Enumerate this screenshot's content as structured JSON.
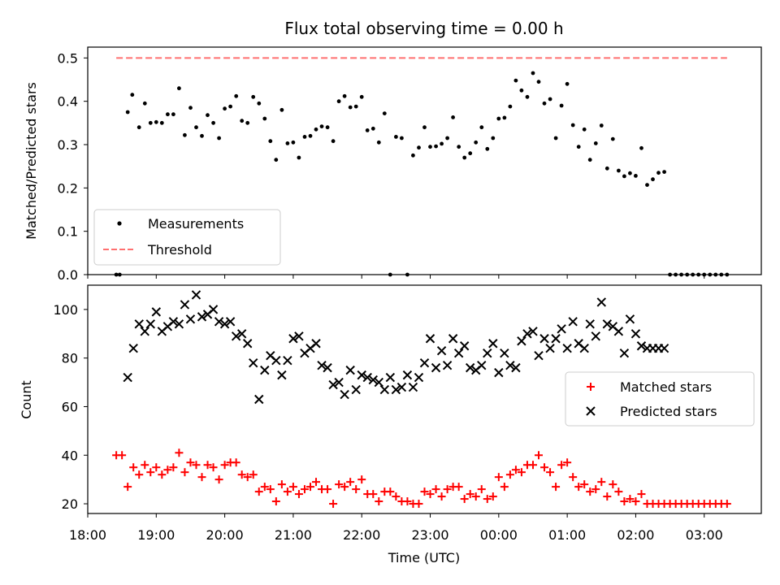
{
  "chart_data": [
    {
      "type": "scatter",
      "title": "Flux total observing time = 0.00 h",
      "xlabel": "",
      "ylabel": "Matched/Predicted stars",
      "xlim": [
        "18:00",
        "03:50"
      ],
      "ylim": [
        0,
        0.525
      ],
      "yticks": [
        "0.0",
        "0.1",
        "0.2",
        "0.3",
        "0.4",
        "0.5"
      ],
      "legend": {
        "placement": "lower-left",
        "entries": [
          "Measurements",
          "Threshold"
        ]
      },
      "series": [
        {
          "name": "Measurements",
          "color": "#000000",
          "marker": "dot",
          "x": [
            "18:25",
            "18:28",
            "18:35",
            "18:39",
            "18:45",
            "18:50",
            "18:55",
            "19:00",
            "19:05",
            "19:10",
            "19:15",
            "19:20",
            "19:25",
            "19:30",
            "19:35",
            "19:40",
            "19:45",
            "19:50",
            "19:55",
            "20:00",
            "20:05",
            "20:10",
            "20:15",
            "20:20",
            "20:25",
            "20:30",
            "20:35",
            "20:40",
            "20:45",
            "20:50",
            "20:55",
            "21:00",
            "21:05",
            "21:10",
            "21:15",
            "21:20",
            "21:25",
            "21:30",
            "21:35",
            "21:40",
            "21:45",
            "21:50",
            "21:55",
            "22:00",
            "22:05",
            "22:10",
            "22:15",
            "22:20",
            "22:25",
            "22:30",
            "22:35",
            "22:40",
            "22:45",
            "22:50",
            "22:55",
            "23:00",
            "23:05",
            "23:10",
            "23:15",
            "23:20",
            "23:25",
            "23:30",
            "23:35",
            "23:40",
            "23:45",
            "23:50",
            "23:55",
            "00:00",
            "00:05",
            "00:10",
            "00:15",
            "00:20",
            "00:25",
            "00:30",
            "00:35",
            "00:40",
            "00:45",
            "00:50",
            "00:55",
            "01:00",
            "01:05",
            "01:10",
            "01:15",
            "01:20",
            "01:25",
            "01:30",
            "01:35",
            "01:40",
            "01:45",
            "01:50",
            "01:55",
            "02:00",
            "02:05",
            "02:10",
            "02:15",
            "02:20",
            "02:25",
            "02:30",
            "02:35",
            "02:40",
            "02:45",
            "02:50",
            "02:55",
            "03:00",
            "03:05",
            "03:10",
            "03:15",
            "03:20"
          ],
          "y": [
            0.0,
            0.0,
            0.375,
            0.415,
            0.34,
            0.395,
            0.35,
            0.352,
            0.35,
            0.37,
            0.37,
            0.43,
            0.322,
            0.385,
            0.34,
            0.32,
            0.368,
            0.35,
            0.315,
            0.383,
            0.388,
            0.412,
            0.355,
            0.35,
            0.41,
            0.395,
            0.36,
            0.308,
            0.265,
            0.38,
            0.303,
            0.305,
            0.27,
            0.318,
            0.32,
            0.335,
            0.342,
            0.34,
            0.308,
            0.4,
            0.412,
            0.386,
            0.388,
            0.41,
            0.333,
            0.337,
            0.305,
            0.372,
            0.0,
            0.318,
            0.315,
            0.0,
            0.275,
            0.293,
            0.34,
            0.295,
            0.296,
            0.302,
            0.315,
            0.363,
            0.295,
            0.27,
            0.28,
            0.305,
            0.34,
            0.29,
            0.315,
            0.36,
            0.362,
            0.388,
            0.448,
            0.425,
            0.41,
            0.465,
            0.445,
            0.395,
            0.405,
            0.315,
            0.39,
            0.44,
            0.345,
            0.295,
            0.335,
            0.265,
            0.303,
            0.344,
            0.245,
            0.313,
            0.24,
            0.227,
            0.234,
            0.228,
            0.292,
            0.207,
            0.22,
            0.235,
            0.237,
            0.0,
            0.0,
            0.0,
            0.0,
            0.0,
            0.0,
            0.0,
            0.0,
            0.0,
            0.0,
            0.0
          ]
        },
        {
          "name": "Threshold",
          "color": "#ff7070",
          "style": "dashed",
          "x": [
            "18:25",
            "03:20"
          ],
          "y": [
            0.5,
            0.5
          ]
        }
      ]
    },
    {
      "type": "scatter",
      "title": "",
      "xlabel": "Time (UTC)",
      "ylabel": "Count",
      "xlim": [
        "18:00",
        "03:50"
      ],
      "ylim": [
        16,
        110
      ],
      "xticks": [
        "18:00",
        "19:00",
        "20:00",
        "21:00",
        "22:00",
        "23:00",
        "00:00",
        "01:00",
        "02:00",
        "03:00"
      ],
      "yticks": [
        "20",
        "40",
        "60",
        "80",
        "100"
      ],
      "legend": {
        "placement": "right",
        "entries": [
          "Matched stars",
          "Predicted stars"
        ]
      },
      "series": [
        {
          "name": "Matched stars",
          "color": "#ff0000",
          "marker": "plus",
          "x": [
            "18:25",
            "18:30",
            "18:35",
            "18:40",
            "18:45",
            "18:50",
            "18:55",
            "19:00",
            "19:05",
            "19:10",
            "19:15",
            "19:20",
            "19:25",
            "19:30",
            "19:35",
            "19:40",
            "19:45",
            "19:50",
            "19:55",
            "20:00",
            "20:05",
            "20:10",
            "20:15",
            "20:20",
            "20:25",
            "20:30",
            "20:35",
            "20:40",
            "20:45",
            "20:50",
            "20:55",
            "21:00",
            "21:05",
            "21:10",
            "21:15",
            "21:20",
            "21:25",
            "21:30",
            "21:35",
            "21:40",
            "21:45",
            "21:50",
            "21:55",
            "22:00",
            "22:05",
            "22:10",
            "22:15",
            "22:20",
            "22:25",
            "22:30",
            "22:35",
            "22:40",
            "22:45",
            "22:50",
            "22:55",
            "23:00",
            "23:05",
            "23:10",
            "23:15",
            "23:20",
            "23:25",
            "23:30",
            "23:35",
            "23:40",
            "23:45",
            "23:50",
            "23:55",
            "00:00",
            "00:05",
            "00:10",
            "00:15",
            "00:20",
            "00:25",
            "00:30",
            "00:35",
            "00:40",
            "00:45",
            "00:50",
            "00:55",
            "01:00",
            "01:05",
            "01:10",
            "01:15",
            "01:20",
            "01:25",
            "01:30",
            "01:35",
            "01:40",
            "01:45",
            "01:50",
            "01:55",
            "02:00",
            "02:05",
            "02:10",
            "02:15",
            "02:20",
            "02:25",
            "02:30",
            "02:35",
            "02:40",
            "02:45",
            "02:50",
            "02:55",
            "03:00",
            "03:05",
            "03:10",
            "03:15",
            "03:20"
          ],
          "y": [
            40,
            40,
            27,
            35,
            32,
            36,
            33,
            35,
            32,
            34,
            35,
            41,
            33,
            37,
            36,
            31,
            36,
            35,
            30,
            36,
            37,
            37,
            32,
            31,
            32,
            25,
            27,
            26,
            21,
            28,
            25,
            27,
            24,
            26,
            27,
            29,
            26,
            26,
            20,
            28,
            27,
            29,
            26,
            30,
            24,
            24,
            21,
            25,
            25,
            23,
            21,
            21,
            20,
            20,
            25,
            24,
            26,
            23,
            26,
            27,
            27,
            22,
            24,
            23,
            26,
            22,
            23,
            31,
            27,
            32,
            34,
            33,
            36,
            36,
            40,
            35,
            33,
            27,
            36,
            37,
            31,
            27,
            28,
            25,
            26,
            29,
            23,
            28,
            25,
            21,
            22,
            21,
            24,
            20,
            20,
            20,
            20,
            20,
            20,
            20,
            20,
            20,
            20,
            20,
            20,
            20,
            20,
            20
          ]
        },
        {
          "name": "Predicted stars",
          "color": "#000000",
          "marker": "x",
          "x": [
            "18:35",
            "18:40",
            "18:45",
            "18:50",
            "18:55",
            "19:00",
            "19:05",
            "19:10",
            "19:15",
            "19:20",
            "19:25",
            "19:30",
            "19:35",
            "19:40",
            "19:45",
            "19:50",
            "19:55",
            "20:00",
            "20:05",
            "20:10",
            "20:15",
            "20:20",
            "20:25",
            "20:30",
            "20:35",
            "20:40",
            "20:45",
            "20:50",
            "20:55",
            "21:00",
            "21:05",
            "21:10",
            "21:15",
            "21:20",
            "21:25",
            "21:30",
            "21:35",
            "21:40",
            "21:45",
            "21:50",
            "21:55",
            "22:00",
            "22:05",
            "22:10",
            "22:15",
            "22:20",
            "22:25",
            "22:30",
            "22:35",
            "22:40",
            "22:45",
            "22:50",
            "22:55",
            "23:00",
            "23:05",
            "23:10",
            "23:15",
            "23:20",
            "23:25",
            "23:30",
            "23:35",
            "23:40",
            "23:45",
            "23:50",
            "23:55",
            "00:00",
            "00:05",
            "00:10",
            "00:15",
            "00:20",
            "00:25",
            "00:30",
            "00:35",
            "00:40",
            "00:45",
            "00:50",
            "00:55",
            "01:00",
            "01:05",
            "01:10",
            "01:15",
            "01:20",
            "01:25",
            "01:30",
            "01:35",
            "01:40",
            "01:45",
            "01:50",
            "01:55",
            "02:00",
            "02:05",
            "02:10",
            "02:15",
            "02:20",
            "02:25"
          ],
          "y": [
            72,
            84,
            94,
            91,
            94,
            99,
            91,
            93,
            95,
            94,
            102,
            96,
            106,
            97,
            98,
            100,
            95,
            94,
            95,
            89,
            90,
            86,
            78,
            63,
            75,
            81,
            79,
            73,
            79,
            88,
            89,
            82,
            84,
            86,
            77,
            76,
            69,
            70,
            65,
            75,
            67,
            73,
            72,
            71,
            70,
            67,
            72,
            67,
            68,
            73,
            68,
            72,
            78,
            88,
            76,
            83,
            77,
            88,
            82,
            85,
            76,
            75,
            77,
            82,
            86,
            74,
            82,
            77,
            76,
            87,
            90,
            91,
            81,
            88,
            84,
            88,
            92,
            84,
            95,
            86,
            84,
            94,
            89,
            103,
            94,
            93,
            91,
            82,
            96,
            90,
            85,
            84,
            84,
            84,
            84
          ]
        }
      ]
    }
  ]
}
